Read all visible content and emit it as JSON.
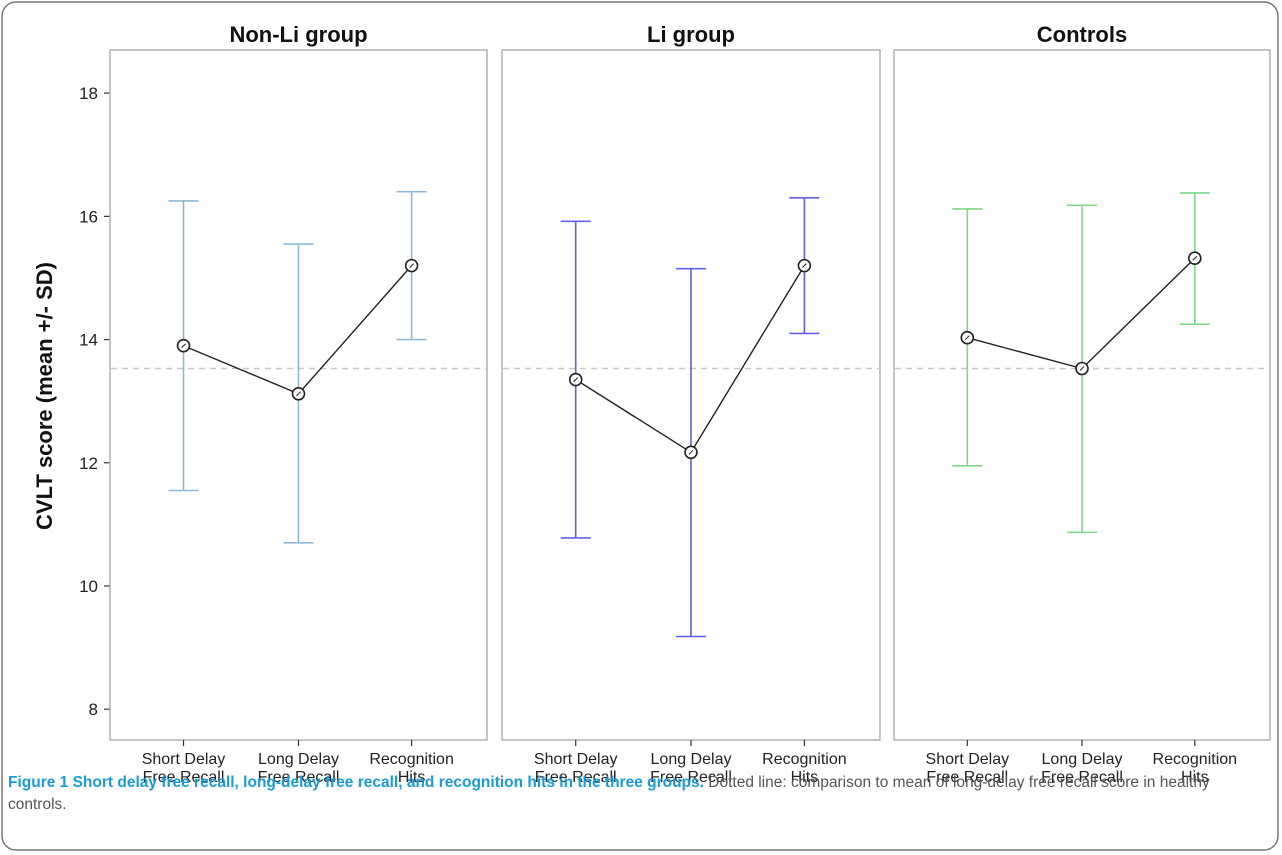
{
  "figure": {
    "caption_title": "Figure 1 Short delay free recall, long-delay free recall, and recognition hits in the three groups.",
    "caption_text": "Dotted line: comparison to mean of long-delay free recall score in healthy controls."
  },
  "chart_data": {
    "type": "line",
    "ylabel": "CVLT score (mean +/- SD)",
    "ylim": [
      7.5,
      18.7
    ],
    "yticks": [
      8,
      10,
      12,
      14,
      16,
      18
    ],
    "categories": [
      [
        "Short Delay",
        "Free Recall"
      ],
      [
        "Long Delay",
        "Free Recall"
      ],
      [
        "Recognition",
        "Hits"
      ]
    ],
    "reference_line": 13.53,
    "grid": false,
    "panels": [
      {
        "title": "Non-Li group",
        "errorbar_color": "#8fb8d8",
        "mean": [
          13.9,
          13.12,
          15.2
        ],
        "lower": [
          11.55,
          10.7,
          14.0
        ],
        "upper": [
          16.25,
          15.55,
          16.4
        ]
      },
      {
        "title": "Li group",
        "errorbar_color": "#6060e8",
        "mean": [
          13.35,
          12.17,
          15.2
        ],
        "lower": [
          10.78,
          9.18,
          14.1
        ],
        "upper": [
          15.92,
          15.15,
          16.3
        ]
      },
      {
        "title": "Controls",
        "errorbar_color": "#7dd88a",
        "mean": [
          14.03,
          13.53,
          15.32
        ],
        "lower": [
          11.95,
          10.87,
          14.25
        ],
        "upper": [
          16.12,
          16.18,
          16.38
        ]
      }
    ]
  }
}
